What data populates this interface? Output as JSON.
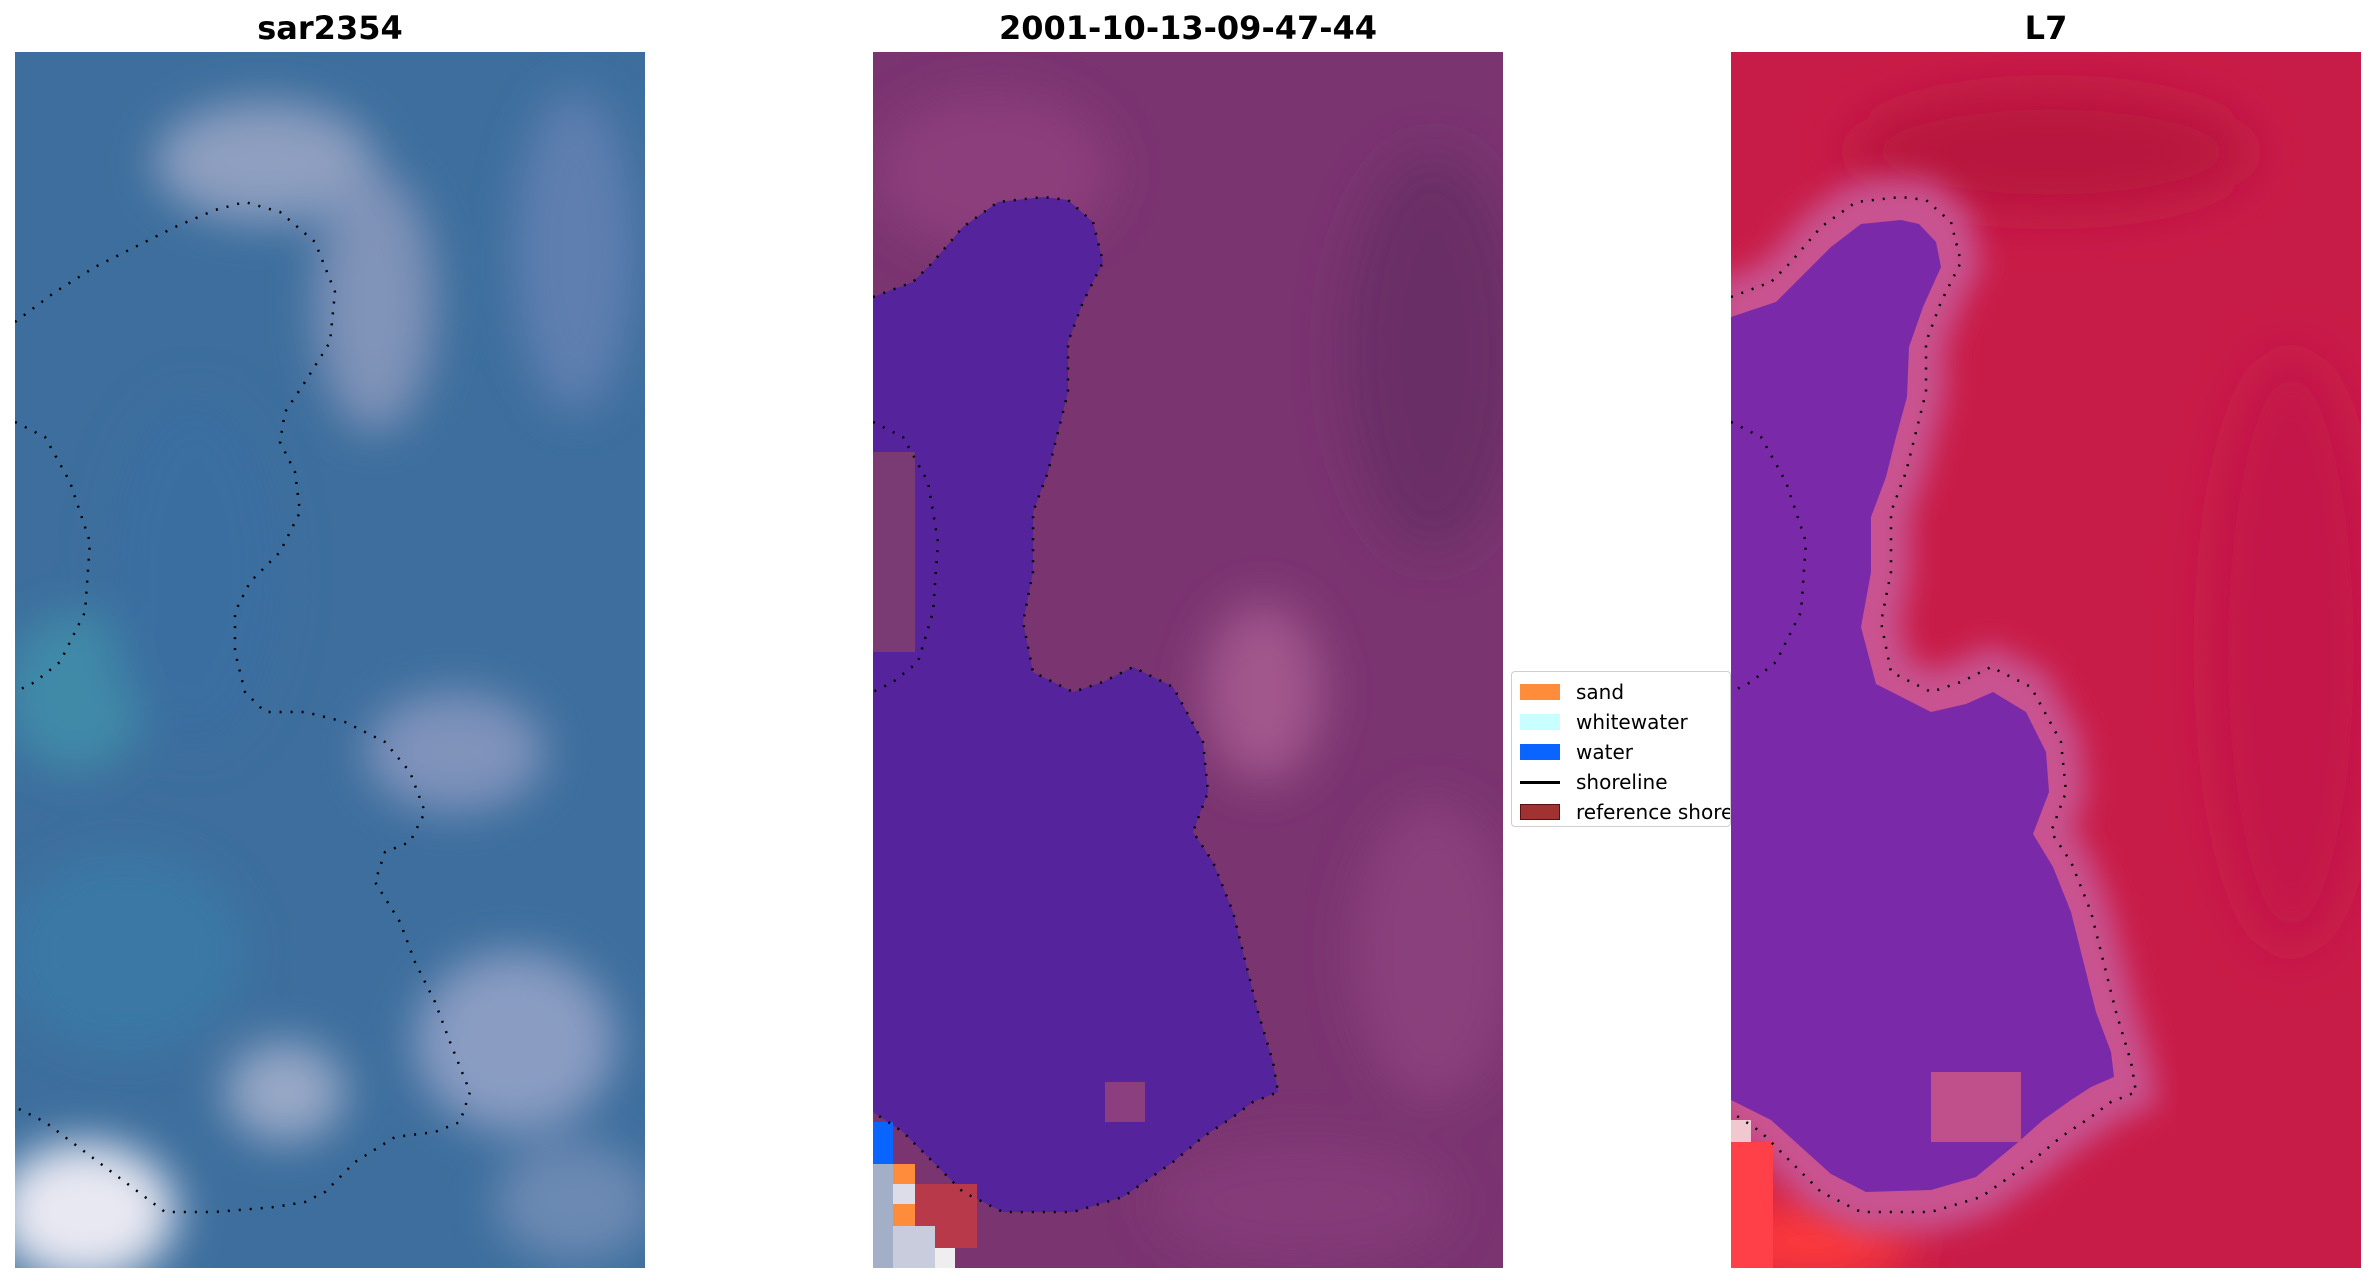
{
  "panels": [
    {
      "title": "sar2354"
    },
    {
      "title": "2001-10-13-09-47-44"
    },
    {
      "title": "L7"
    }
  ],
  "legend": {
    "items": [
      {
        "label": "sand",
        "kind": "patch",
        "color": "#ff8c3a",
        "edge": "#ff8c3a"
      },
      {
        "label": "whitewater",
        "kind": "patch",
        "color": "#c8ffff",
        "edge": "#c8ffff"
      },
      {
        "label": "water",
        "kind": "patch",
        "color": "#0a64ff",
        "edge": "#0a64ff"
      },
      {
        "label": "shoreline",
        "kind": "line",
        "color": "#000000"
      },
      {
        "label": "reference shoreline",
        "kind": "patch",
        "color": "#a03232",
        "edge": "#5a1010"
      }
    ]
  },
  "colors": {
    "rgb_base": "#3b6f9e",
    "classified_background": "#7a3470",
    "classified_water": "#55249c",
    "mndwi_land": "#c81c48",
    "mndwi_water": "#7a2aa8",
    "shoreline": "#000000"
  }
}
